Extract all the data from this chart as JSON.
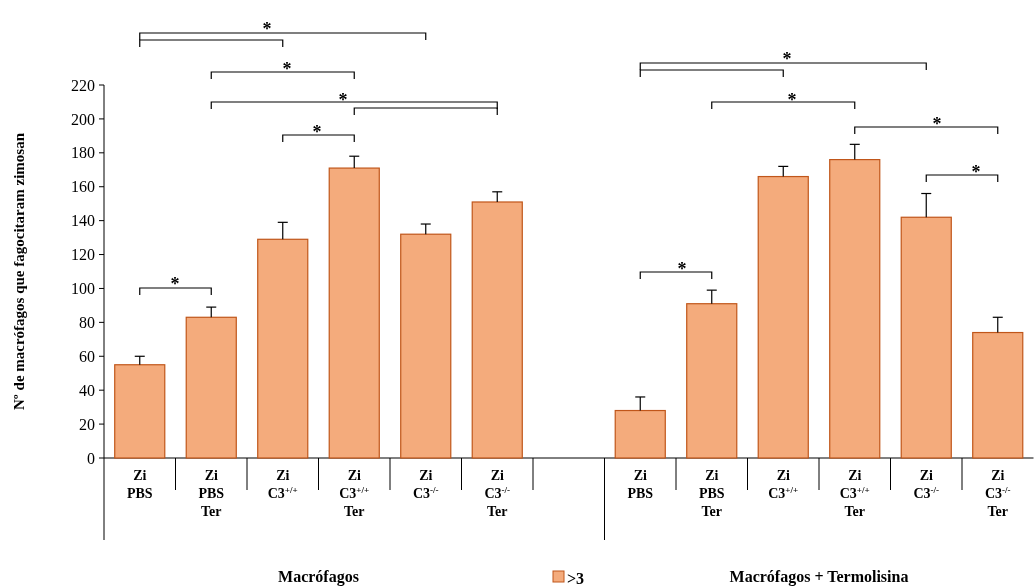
{
  "chart_data": {
    "type": "bar",
    "ylabel": "Nº de macrófagos que fagocitaram zimosan",
    "categories": [
      "Zi\nPBS",
      "Zi\nPBS\nTer",
      "Zi\nC3$^{+/+}$",
      "Zi\nC3$^{+/+}$\nTer",
      "Zi\nC3$^{-/-}$",
      "Zi\nC3$^{-/-}$\nTer",
      null,
      "Zi\nPBS",
      "Zi\nPBS\nTer",
      "Zi\nC3$^{+/+}$",
      "Zi\nC3$^{+/+}$\nTer",
      "Zi\nC3$^{-/-}$",
      "Zi\nC3$^{-/-}$\nTer"
    ],
    "series": [
      {
        "name": ">3",
        "color": "#f4ab7c",
        "values": [
          55,
          83,
          129,
          171,
          132,
          151,
          null,
          28,
          91,
          166,
          176,
          142,
          74
        ],
        "errors": [
          5,
          6,
          10,
          7,
          6,
          6,
          null,
          8,
          8,
          6,
          9,
          14,
          9
        ]
      }
    ],
    "ylim": [
      0,
      220
    ],
    "yticks": [
      0,
      20,
      40,
      60,
      80,
      100,
      120,
      140,
      160,
      180,
      200,
      220
    ],
    "legend": "bottom",
    "annotations": [
      "Macrófagos",
      "Macrófagos + Termolisina",
      "*",
      "*",
      "*",
      "*",
      "*",
      "*",
      "*",
      "*",
      "*",
      "*"
    ]
  }
}
